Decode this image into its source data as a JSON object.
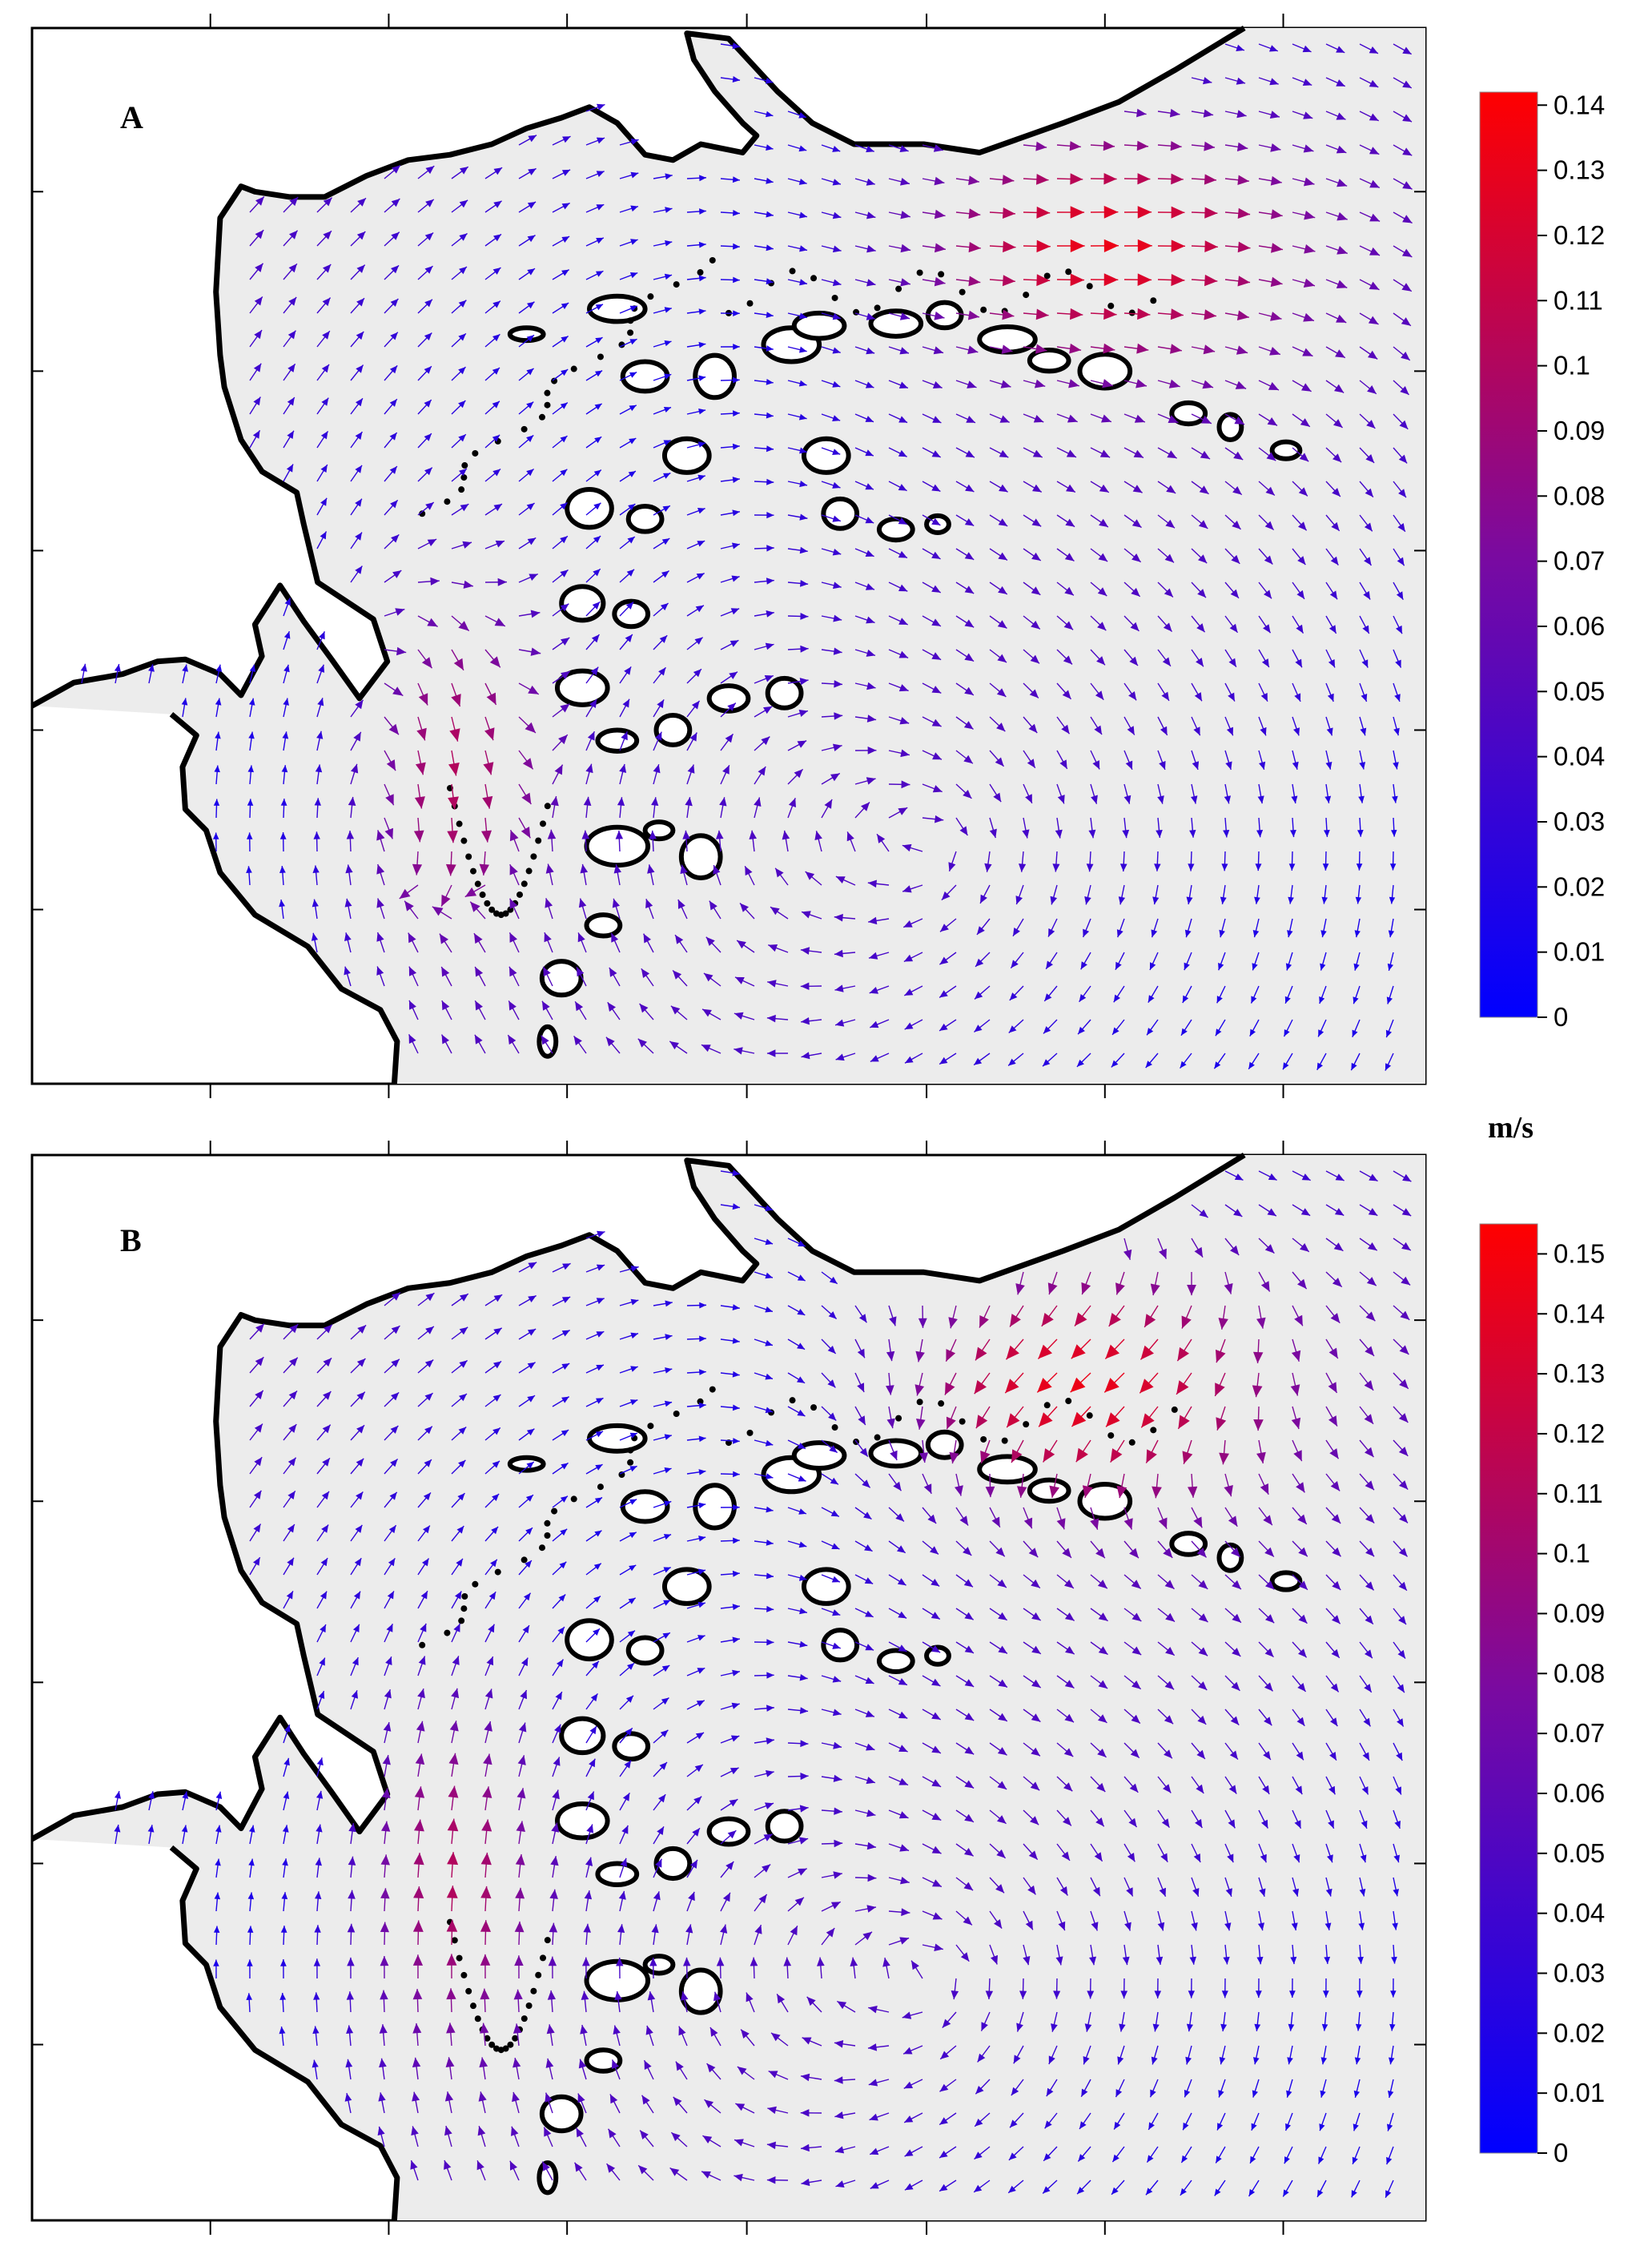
{
  "figure": {
    "unit_label": "m/s",
    "colors": {
      "low": "#0000ff",
      "mid": "#7a0aa0",
      "high": "#ff0000",
      "land": "#ffffff",
      "water": "#ececec",
      "coast": "#000000"
    }
  },
  "chart_data": [
    {
      "type": "heatmap",
      "panel": "A",
      "title": "",
      "xlabel": "",
      "ylabel": "",
      "colorbar": {
        "label": "m/s",
        "range": [
          0,
          0.142
        ],
        "ticks": [
          0,
          0.01,
          0.02,
          0.03,
          0.04,
          0.05,
          0.06,
          0.07,
          0.08,
          0.09,
          0.1,
          0.11,
          0.12,
          0.13,
          0.14
        ],
        "tick_labels": [
          "0",
          "0.01",
          "0.02",
          "0.03",
          "0.04",
          "0.05",
          "0.06",
          "0.07",
          "0.08",
          "0.09",
          "0.1",
          "0.11",
          "0.12",
          "0.13",
          "0.14"
        ]
      },
      "field": {
        "description": "current velocity vectors, speed colored",
        "max_speed": 0.14,
        "strong_flow": [
          "north-east outlet",
          "south-west channel between islands"
        ],
        "eddy": "clockwise gyre in south-east basin"
      }
    },
    {
      "type": "heatmap",
      "panel": "B",
      "title": "",
      "xlabel": "",
      "ylabel": "",
      "colorbar": {
        "label": "",
        "range": [
          0,
          0.155
        ],
        "ticks": [
          0,
          0.01,
          0.02,
          0.03,
          0.04,
          0.05,
          0.06,
          0.07,
          0.08,
          0.09,
          0.1,
          0.11,
          0.12,
          0.13,
          0.14,
          0.15
        ],
        "tick_labels": [
          "0",
          "0.01",
          "0.02",
          "0.03",
          "0.04",
          "0.05",
          "0.06",
          "0.07",
          "0.08",
          "0.09",
          "0.1",
          "0.11",
          "0.12",
          "0.13",
          "0.14",
          "0.15"
        ]
      },
      "field": {
        "description": "current velocity vectors, speed colored",
        "max_speed": 0.15,
        "strong_flow": [
          "north-east outlet",
          "western channel"
        ],
        "eddy": "clockwise gyre in south-east basin"
      }
    }
  ]
}
